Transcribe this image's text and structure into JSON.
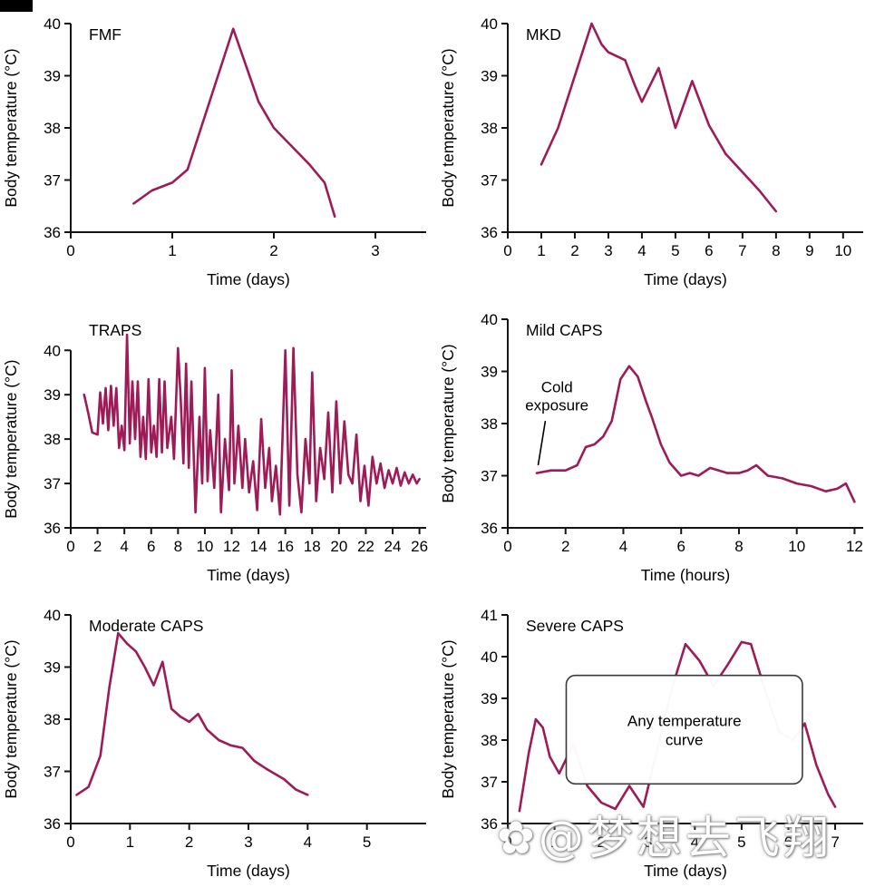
{
  "style": {
    "line_color": "#9e1b57",
    "axis_color": "#141414",
    "background": "#ffffff"
  },
  "watermark": {
    "text": "✿@梦想去飞翔",
    "color": "#ffffff"
  },
  "chart_data": [
    {
      "id": "fmf",
      "type": "line",
      "title": "FMF",
      "xlabel": "Time (days)",
      "ylabel": "Body temperature (°C)",
      "xlim": [
        0,
        3.5
      ],
      "ylim": [
        36,
        40
      ],
      "xticks": [
        0,
        1,
        2,
        3
      ],
      "yticks": [
        36,
        37,
        38,
        39,
        40
      ],
      "points": [
        [
          0.62,
          36.55
        ],
        [
          0.8,
          36.8
        ],
        [
          1.0,
          36.95
        ],
        [
          1.15,
          37.2
        ],
        [
          1.6,
          39.9
        ],
        [
          1.85,
          38.5
        ],
        [
          2.0,
          38.0
        ],
        [
          2.2,
          37.6
        ],
        [
          2.35,
          37.3
        ],
        [
          2.5,
          36.95
        ],
        [
          2.6,
          36.3
        ]
      ]
    },
    {
      "id": "mkd",
      "type": "line",
      "title": "MKD",
      "xlabel": "Time (days)",
      "ylabel": "Body temperature (°C)",
      "xlim": [
        0,
        10.6
      ],
      "ylim": [
        36,
        40
      ],
      "xticks": [
        0,
        1,
        2,
        3,
        4,
        5,
        6,
        7,
        8,
        9,
        10
      ],
      "yticks": [
        36,
        37,
        38,
        39,
        40
      ],
      "points": [
        [
          1,
          37.3
        ],
        [
          1.5,
          38.0
        ],
        [
          2,
          39.0
        ],
        [
          2.5,
          40.0
        ],
        [
          2.8,
          39.6
        ],
        [
          3,
          39.45
        ],
        [
          3.5,
          39.3
        ],
        [
          3.8,
          38.8
        ],
        [
          4,
          38.5
        ],
        [
          4.5,
          39.15
        ],
        [
          5,
          38.0
        ],
        [
          5.5,
          38.9
        ],
        [
          6,
          38.05
        ],
        [
          6.5,
          37.5
        ],
        [
          7,
          37.15
        ],
        [
          7.5,
          36.8
        ],
        [
          8,
          36.4
        ]
      ]
    },
    {
      "id": "traps",
      "type": "line",
      "title": "TRAPS",
      "xlabel": "Time (days)",
      "ylabel": "Body temperature (°C)",
      "xlim": [
        0,
        26.5
      ],
      "ylim": [
        36,
        40.7
      ],
      "xticks": [
        0,
        2,
        4,
        6,
        8,
        10,
        12,
        14,
        16,
        18,
        20,
        22,
        24,
        26
      ],
      "yticks": [
        36,
        37,
        38,
        39,
        40
      ],
      "points": [
        [
          1,
          39.0
        ],
        [
          1.3,
          38.6
        ],
        [
          1.6,
          38.15
        ],
        [
          2,
          38.1
        ],
        [
          2.2,
          39.05
        ],
        [
          2.4,
          38.35
        ],
        [
          2.6,
          39.15
        ],
        [
          2.8,
          38.2
        ],
        [
          3,
          39.2
        ],
        [
          3.2,
          38.3
        ],
        [
          3.4,
          39.15
        ],
        [
          3.6,
          37.8
        ],
        [
          3.8,
          38.3
        ],
        [
          4,
          37.75
        ],
        [
          4.2,
          40.35
        ],
        [
          4.4,
          37.9
        ],
        [
          4.6,
          39.3
        ],
        [
          4.8,
          38.0
        ],
        [
          5,
          39.3
        ],
        [
          5.2,
          37.6
        ],
        [
          5.4,
          38.5
        ],
        [
          5.6,
          37.55
        ],
        [
          5.8,
          39.35
        ],
        [
          6,
          37.7
        ],
        [
          6.2,
          38.3
        ],
        [
          6.4,
          37.6
        ],
        [
          6.6,
          39.35
        ],
        [
          6.8,
          37.7
        ],
        [
          7,
          39.3
        ],
        [
          7.2,
          37.8
        ],
        [
          7.5,
          38.5
        ],
        [
          7.7,
          37.55
        ],
        [
          8,
          40.05
        ],
        [
          8.2,
          38.9
        ],
        [
          8.4,
          37.45
        ],
        [
          8.6,
          39.7
        ],
        [
          8.8,
          37.35
        ],
        [
          9,
          39.3
        ],
        [
          9.3,
          36.35
        ],
        [
          9.6,
          38.5
        ],
        [
          9.8,
          37.0
        ],
        [
          10,
          39.6
        ],
        [
          10.2,
          37.05
        ],
        [
          10.4,
          38.2
        ],
        [
          10.7,
          36.9
        ],
        [
          11,
          39.0
        ],
        [
          11.2,
          36.35
        ],
        [
          11.5,
          38.0
        ],
        [
          11.8,
          36.85
        ],
        [
          12,
          39.55
        ],
        [
          12.2,
          37.0
        ],
        [
          12.5,
          38.3
        ],
        [
          12.8,
          36.9
        ],
        [
          13,
          38.0
        ],
        [
          13.3,
          36.8
        ],
        [
          13.6,
          37.5
        ],
        [
          13.9,
          36.4
        ],
        [
          14.2,
          38.45
        ],
        [
          14.5,
          36.9
        ],
        [
          14.8,
          37.8
        ],
        [
          15,
          36.6
        ],
        [
          15.3,
          37.4
        ],
        [
          15.6,
          36.3
        ],
        [
          16,
          40.0
        ],
        [
          16.3,
          36.5
        ],
        [
          16.6,
          40.05
        ],
        [
          16.9,
          37.2
        ],
        [
          17.2,
          36.35
        ],
        [
          17.5,
          38.0
        ],
        [
          17.8,
          37.0
        ],
        [
          18,
          39.5
        ],
        [
          18.3,
          36.6
        ],
        [
          18.6,
          37.8
        ],
        [
          18.9,
          37.1
        ],
        [
          19.2,
          38.6
        ],
        [
          19.5,
          36.8
        ],
        [
          19.8,
          38.85
        ],
        [
          20.1,
          37.0
        ],
        [
          20.4,
          38.4
        ],
        [
          20.7,
          37.2
        ],
        [
          21,
          37.0
        ],
        [
          21.3,
          38.1
        ],
        [
          21.6,
          36.6
        ],
        [
          21.9,
          37.4
        ],
        [
          22.2,
          36.5
        ],
        [
          22.5,
          37.6
        ],
        [
          22.8,
          37.0
        ],
        [
          23.1,
          37.45
        ],
        [
          23.4,
          36.9
        ],
        [
          23.7,
          37.3
        ],
        [
          24,
          37.0
        ],
        [
          24.3,
          37.35
        ],
        [
          24.6,
          36.95
        ],
        [
          24.9,
          37.25
        ],
        [
          25.2,
          37.0
        ],
        [
          25.5,
          37.2
        ],
        [
          25.8,
          37.0
        ],
        [
          26,
          37.1
        ]
      ]
    },
    {
      "id": "mild-caps",
      "type": "line",
      "title": "Mild CAPS",
      "xlabel": "Time (hours)",
      "ylabel": "Body temperature (°C)",
      "xlim": [
        0,
        12.3
      ],
      "ylim": [
        36,
        40
      ],
      "xticks": [
        0,
        2,
        4,
        6,
        8,
        10,
        12
      ],
      "yticks": [
        36,
        37,
        38,
        39,
        40
      ],
      "annotation": {
        "lines": [
          "Cold",
          "exposure"
        ],
        "text_xy": [
          1.7,
          38.6
        ],
        "line": [
          [
            1.3,
            38.05
          ],
          [
            1.05,
            37.2
          ]
        ]
      },
      "points": [
        [
          1,
          37.05
        ],
        [
          1.5,
          37.1
        ],
        [
          2,
          37.1
        ],
        [
          2.4,
          37.2
        ],
        [
          2.7,
          37.55
        ],
        [
          3,
          37.6
        ],
        [
          3.3,
          37.75
        ],
        [
          3.6,
          38.05
        ],
        [
          3.9,
          38.85
        ],
        [
          4.2,
          39.1
        ],
        [
          4.5,
          38.9
        ],
        [
          4.8,
          38.4
        ],
        [
          5,
          38.1
        ],
        [
          5.3,
          37.6
        ],
        [
          5.6,
          37.25
        ],
        [
          6,
          37.0
        ],
        [
          6.3,
          37.05
        ],
        [
          6.6,
          37.0
        ],
        [
          7,
          37.15
        ],
        [
          7.3,
          37.1
        ],
        [
          7.6,
          37.05
        ],
        [
          8,
          37.05
        ],
        [
          8.3,
          37.1
        ],
        [
          8.6,
          37.2
        ],
        [
          9,
          37.0
        ],
        [
          9.5,
          36.95
        ],
        [
          10,
          36.85
        ],
        [
          10.5,
          36.8
        ],
        [
          11,
          36.7
        ],
        [
          11.4,
          36.75
        ],
        [
          11.7,
          36.85
        ],
        [
          12,
          36.5
        ]
      ]
    },
    {
      "id": "moderate-caps",
      "type": "line",
      "title": "Moderate CAPS",
      "xlabel": "Time (days)",
      "ylabel": "Body temperature (°C)",
      "xlim": [
        0,
        6
      ],
      "ylim": [
        36,
        40
      ],
      "xticks": [
        0,
        1,
        2,
        3,
        4,
        5
      ],
      "yticks": [
        36,
        37,
        38,
        39,
        40
      ],
      "points": [
        [
          0.1,
          36.55
        ],
        [
          0.3,
          36.7
        ],
        [
          0.5,
          37.3
        ],
        [
          0.65,
          38.6
        ],
        [
          0.8,
          39.65
        ],
        [
          0.95,
          39.45
        ],
        [
          1.1,
          39.3
        ],
        [
          1.25,
          39.0
        ],
        [
          1.4,
          38.65
        ],
        [
          1.55,
          39.1
        ],
        [
          1.7,
          38.2
        ],
        [
          1.85,
          38.05
        ],
        [
          2.0,
          37.95
        ],
        [
          2.15,
          38.1
        ],
        [
          2.3,
          37.8
        ],
        [
          2.5,
          37.6
        ],
        [
          2.7,
          37.5
        ],
        [
          2.9,
          37.45
        ],
        [
          3.1,
          37.2
        ],
        [
          3.3,
          37.05
        ],
        [
          3.6,
          36.85
        ],
        [
          3.8,
          36.65
        ],
        [
          4.0,
          36.55
        ]
      ]
    },
    {
      "id": "severe-caps",
      "type": "line",
      "title": "Severe CAPS",
      "xlabel": "Time (days)",
      "ylabel": "Body temperature (°C)",
      "xlim": [
        0,
        7.6
      ],
      "ylim": [
        36,
        41
      ],
      "xticks": [
        0,
        1,
        2,
        3,
        4,
        5,
        6,
        7
      ],
      "yticks": [
        36,
        37,
        38,
        39,
        40,
        41
      ],
      "overlay": {
        "label_lines": [
          "Any temperature",
          "curve"
        ],
        "x": [
          1.25,
          6.3
        ],
        "y": [
          36.95,
          39.55
        ]
      },
      "points": [
        [
          0.25,
          36.3
        ],
        [
          0.45,
          37.7
        ],
        [
          0.6,
          38.5
        ],
        [
          0.75,
          38.3
        ],
        [
          0.9,
          37.6
        ],
        [
          1.1,
          37.2
        ],
        [
          1.4,
          37.9
        ],
        [
          1.7,
          36.9
        ],
        [
          2.0,
          36.5
        ],
        [
          2.3,
          36.35
        ],
        [
          2.6,
          36.9
        ],
        [
          2.9,
          36.4
        ],
        [
          3.2,
          37.8
        ],
        [
          3.5,
          39.2
        ],
        [
          3.8,
          40.3
        ],
        [
          4.1,
          39.9
        ],
        [
          4.4,
          39.3
        ],
        [
          4.7,
          39.8
        ],
        [
          5.0,
          40.35
        ],
        [
          5.2,
          40.3
        ],
        [
          5.5,
          39.2
        ],
        [
          5.8,
          38.2
        ],
        [
          6.1,
          38.0
        ],
        [
          6.35,
          38.4
        ],
        [
          6.6,
          37.4
        ],
        [
          6.85,
          36.7
        ],
        [
          7.0,
          36.4
        ]
      ]
    }
  ]
}
